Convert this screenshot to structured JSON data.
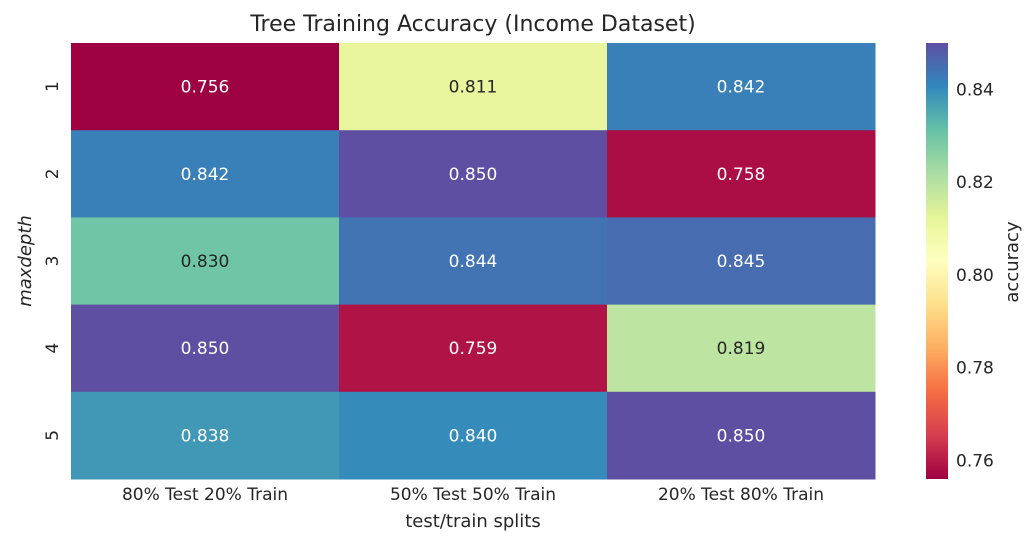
{
  "chart_data": {
    "type": "heatmap",
    "title": "Tree Training Accuracy (Income Dataset)",
    "xlabel": "test/train splits",
    "ylabel": "maxdepth",
    "x_categories": [
      "80% Test 20% Train",
      "50% Test 50% Train",
      "20% Test 80% Train"
    ],
    "y_categories": [
      "1",
      "2",
      "3",
      "4",
      "5"
    ],
    "values": [
      [
        0.756,
        0.811,
        0.842
      ],
      [
        0.842,
        0.85,
        0.758
      ],
      [
        0.83,
        0.844,
        0.845
      ],
      [
        0.85,
        0.759,
        0.819
      ],
      [
        0.838,
        0.84,
        0.85
      ]
    ],
    "value_labels": [
      [
        "0.756",
        "0.811",
        "0.842"
      ],
      [
        "0.842",
        "0.850",
        "0.758"
      ],
      [
        "0.830",
        "0.844",
        "0.845"
      ],
      [
        "0.850",
        "0.759",
        "0.819"
      ],
      [
        "0.838",
        "0.840",
        "0.850"
      ]
    ],
    "colormap": "Spectral",
    "colorbar": {
      "label": "accuracy",
      "range": [
        0.756,
        0.85
      ],
      "ticks": [
        0.76,
        0.78,
        0.8,
        0.82,
        0.84
      ],
      "tick_labels": [
        "0.76",
        "0.78",
        "0.80",
        "0.82",
        "0.84"
      ]
    },
    "grid": false
  }
}
